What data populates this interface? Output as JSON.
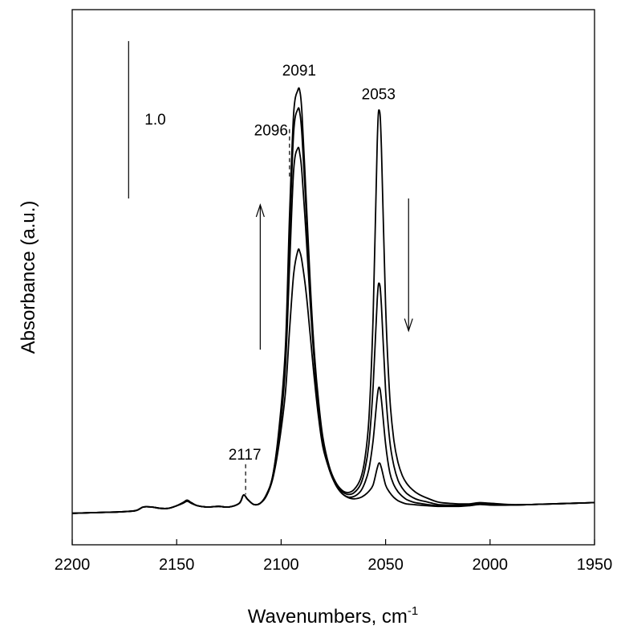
{
  "chart_data": {
    "type": "line",
    "title": "",
    "xlabel": "Wavenumbers, cm",
    "xlabel_superscript": "-1",
    "ylabel": "Absorbance (a.u.)",
    "xlim": [
      2200,
      1950
    ],
    "x_reversed": true,
    "ylim": [
      0,
      8.5
    ],
    "x_ticks": [
      "2200",
      "2150",
      "2100",
      "2050",
      "2000",
      "1950"
    ],
    "y_ticks_shown": false,
    "grid": false,
    "legend": "none",
    "line_color": "#000000",
    "scale_bar": {
      "label": "1.0",
      "value": 1.0,
      "x": 2173,
      "y_bottom": 5.5
    },
    "peak_labels": [
      {
        "text": "2091",
        "x": 2091
      },
      {
        "text": "2096",
        "x": 2096
      },
      {
        "text": "2053",
        "x": 2053
      },
      {
        "text": "2117",
        "x": 2117
      }
    ],
    "arrows": [
      {
        "direction": "up",
        "x": 2110,
        "y_from": 3.1,
        "y_to": 5.4
      },
      {
        "direction": "down",
        "x": 2039,
        "y_from": 5.5,
        "y_to": 3.4
      }
    ],
    "series": [
      {
        "x": [
          2200,
          2190,
          2180,
          2170,
          2166,
          2162,
          2158,
          2154,
          2150,
          2147,
          2145,
          2143,
          2140,
          2135,
          2130,
          2125,
          2120,
          2118,
          2116,
          2113,
          2110,
          2107,
          2104,
          2101,
          2098,
          2096,
          2094,
          2092,
          2091,
          2090,
          2088,
          2086,
          2084,
          2082,
          2080,
          2077,
          2074,
          2071,
          2068,
          2065,
          2062,
          2060,
          2058,
          2056,
          2054,
          2053,
          2052,
          2050,
          2048,
          2046,
          2044,
          2042,
          2040,
          2037,
          2034,
          2030,
          2025,
          2020,
          2015,
          2010,
          2005,
          2000,
          1990,
          1980,
          1970,
          1960,
          1950
        ],
        "y": [
          0.5,
          0.51,
          0.52,
          0.54,
          0.6,
          0.6,
          0.58,
          0.58,
          0.62,
          0.66,
          0.69,
          0.66,
          0.62,
          0.6,
          0.61,
          0.6,
          0.66,
          0.79,
          0.72,
          0.64,
          0.66,
          0.78,
          1.05,
          1.6,
          2.4,
          3.4,
          4.3,
          4.67,
          4.65,
          4.5,
          4.0,
          3.3,
          2.6,
          2.0,
          1.55,
          1.2,
          0.96,
          0.82,
          0.75,
          0.73,
          0.75,
          0.79,
          0.85,
          0.95,
          1.22,
          1.3,
          1.22,
          0.95,
          0.83,
          0.75,
          0.7,
          0.67,
          0.65,
          0.64,
          0.63,
          0.62,
          0.61,
          0.61,
          0.61,
          0.62,
          0.64,
          0.63,
          0.63,
          0.64,
          0.65,
          0.66,
          0.67
        ]
      },
      {
        "x": [
          2200,
          2190,
          2180,
          2170,
          2166,
          2162,
          2158,
          2154,
          2150,
          2147,
          2145,
          2143,
          2140,
          2135,
          2130,
          2125,
          2120,
          2118,
          2116,
          2113,
          2110,
          2107,
          2104,
          2101,
          2098,
          2096,
          2094,
          2092,
          2091,
          2090,
          2088,
          2086,
          2084,
          2082,
          2080,
          2077,
          2074,
          2071,
          2068,
          2065,
          2062,
          2060,
          2058,
          2056,
          2054,
          2053,
          2052,
          2050,
          2048,
          2046,
          2044,
          2042,
          2040,
          2037,
          2034,
          2030,
          2025,
          2020,
          2015,
          2010,
          2005,
          2000,
          1990,
          1980,
          1970,
          1960,
          1950
        ],
        "y": [
          0.5,
          0.51,
          0.52,
          0.54,
          0.6,
          0.6,
          0.58,
          0.58,
          0.62,
          0.66,
          0.7,
          0.66,
          0.62,
          0.6,
          0.61,
          0.6,
          0.66,
          0.79,
          0.72,
          0.64,
          0.66,
          0.78,
          1.07,
          1.7,
          2.8,
          4.4,
          5.95,
          6.3,
          6.2,
          5.9,
          4.9,
          3.8,
          2.85,
          2.1,
          1.6,
          1.2,
          0.96,
          0.82,
          0.76,
          0.77,
          0.85,
          0.98,
          1.2,
          1.65,
          2.35,
          2.5,
          2.3,
          1.6,
          1.15,
          0.95,
          0.84,
          0.77,
          0.72,
          0.68,
          0.66,
          0.64,
          0.62,
          0.62,
          0.62,
          0.63,
          0.65,
          0.64,
          0.63,
          0.64,
          0.65,
          0.66,
          0.67
        ]
      },
      {
        "x": [
          2200,
          2190,
          2180,
          2170,
          2166,
          2162,
          2158,
          2154,
          2150,
          2147,
          2145,
          2143,
          2140,
          2135,
          2130,
          2125,
          2120,
          2118,
          2116,
          2113,
          2110,
          2107,
          2104,
          2101,
          2098,
          2096,
          2094,
          2092,
          2091,
          2090,
          2088,
          2086,
          2084,
          2082,
          2080,
          2077,
          2074,
          2071,
          2068,
          2065,
          2062,
          2060,
          2058,
          2056,
          2054,
          2053,
          2052,
          2050,
          2048,
          2046,
          2044,
          2042,
          2040,
          2037,
          2034,
          2030,
          2025,
          2020,
          2015,
          2010,
          2005,
          2000,
          1990,
          1980,
          1970,
          1960,
          1950
        ],
        "y": [
          0.5,
          0.51,
          0.52,
          0.54,
          0.6,
          0.6,
          0.58,
          0.58,
          0.62,
          0.67,
          0.7,
          0.67,
          0.62,
          0.6,
          0.61,
          0.6,
          0.66,
          0.79,
          0.72,
          0.64,
          0.66,
          0.8,
          1.1,
          1.8,
          3.0,
          4.9,
          6.55,
          6.92,
          6.85,
          6.5,
          5.3,
          4.0,
          2.95,
          2.2,
          1.65,
          1.23,
          0.98,
          0.85,
          0.8,
          0.83,
          0.96,
          1.18,
          1.6,
          2.5,
          3.9,
          4.15,
          3.8,
          2.45,
          1.65,
          1.25,
          1.02,
          0.9,
          0.82,
          0.75,
          0.71,
          0.68,
          0.64,
          0.63,
          0.63,
          0.64,
          0.66,
          0.65,
          0.63,
          0.64,
          0.65,
          0.66,
          0.67
        ]
      },
      {
        "x": [
          2200,
          2190,
          2180,
          2170,
          2166,
          2162,
          2158,
          2154,
          2150,
          2147,
          2145,
          2143,
          2140,
          2135,
          2130,
          2125,
          2120,
          2118,
          2116,
          2113,
          2110,
          2107,
          2104,
          2101,
          2098,
          2096,
          2094,
          2092,
          2091,
          2090,
          2088,
          2086,
          2084,
          2082,
          2080,
          2077,
          2074,
          2071,
          2068,
          2065,
          2062,
          2060,
          2058,
          2056,
          2054,
          2053,
          2052,
          2050,
          2048,
          2046,
          2044,
          2042,
          2040,
          2037,
          2034,
          2030,
          2025,
          2020,
          2015,
          2010,
          2005,
          2000,
          1990,
          1980,
          1970,
          1960,
          1950
        ],
        "y": [
          0.5,
          0.51,
          0.52,
          0.54,
          0.6,
          0.6,
          0.58,
          0.58,
          0.62,
          0.67,
          0.71,
          0.67,
          0.62,
          0.6,
          0.61,
          0.6,
          0.66,
          0.79,
          0.72,
          0.64,
          0.66,
          0.8,
          1.1,
          1.85,
          3.1,
          5.2,
          6.85,
          7.22,
          7.2,
          6.85,
          5.5,
          4.1,
          3.0,
          2.25,
          1.7,
          1.25,
          1.0,
          0.87,
          0.83,
          0.88,
          1.05,
          1.35,
          2.0,
          3.6,
          6.4,
          6.9,
          6.3,
          3.8,
          2.35,
          1.65,
          1.3,
          1.1,
          0.98,
          0.87,
          0.8,
          0.74,
          0.68,
          0.66,
          0.65,
          0.65,
          0.67,
          0.66,
          0.64,
          0.64,
          0.65,
          0.66,
          0.67
        ]
      }
    ]
  }
}
